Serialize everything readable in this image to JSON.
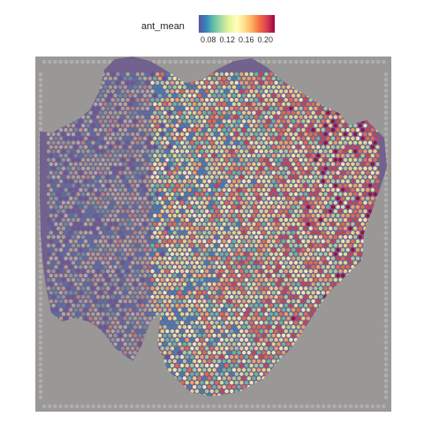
{
  "legend": {
    "title": "ant_mean",
    "tick_labels": [
      "0.08",
      "0.12",
      "0.16",
      "0.20"
    ],
    "tick_values": [
      0.08,
      0.12,
      0.16,
      0.2
    ],
    "range": [
      0.06,
      0.22
    ],
    "colormap": [
      "#5e4fa2",
      "#3288bd",
      "#66c2a5",
      "#abdda4",
      "#e6f598",
      "#ffffbf",
      "#fee08b",
      "#fdae61",
      "#f46d43",
      "#d53e4f",
      "#9e0142"
    ]
  },
  "image": {
    "description_type": "spatial transcriptomics spot overlay on H&E tissue",
    "background_color": "#9a9797",
    "tissue_color": "#6e5a8a"
  }
}
